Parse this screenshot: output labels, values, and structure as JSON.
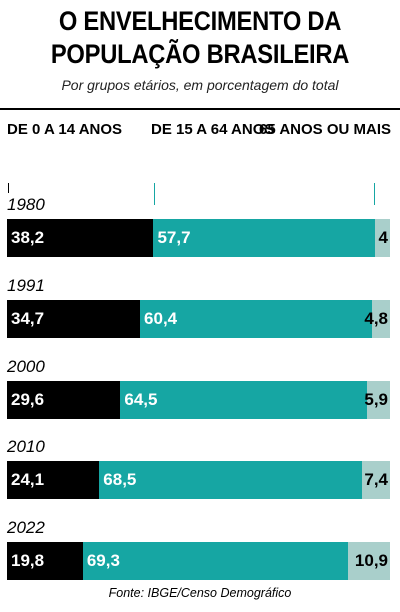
{
  "header": {
    "title_line1": "O ENVELHECIMENTO DA",
    "title_line2": "POPULAÇÃO BRASILEIRA",
    "subtitle": "Por grupos etários, em porcentagem do total"
  },
  "colors": {
    "age_0_14": "#000000",
    "age_15_64": "#16a6a3",
    "age_65_plus": "#a9cfcb",
    "label_light": "#ffffff",
    "label_dark": "#000000"
  },
  "chart_data": {
    "type": "bar",
    "orientation": "horizontal",
    "stacked": true,
    "unit": "%",
    "title": "O ENVELHECIMENTO DA POPULAÇÃO BRASILEIRA",
    "subtitle": "Por grupos etários, em porcentagem do total",
    "categories": [
      "1980",
      "1991",
      "2000",
      "2010",
      "2022"
    ],
    "series": [
      {
        "name": "DE 0 A 14 ANOS",
        "values": [
          38.2,
          34.7,
          29.6,
          24.1,
          19.8
        ],
        "labels": [
          "38,2",
          "34,7",
          "29,6",
          "24,1",
          "19,8"
        ]
      },
      {
        "name": "DE 15 A 64 ANOS",
        "values": [
          57.7,
          60.4,
          64.5,
          68.5,
          69.3
        ],
        "labels": [
          "57,7",
          "60,4",
          "64,5",
          "68,5",
          "69,3"
        ]
      },
      {
        "name": "65 ANOS OU MAIS",
        "values": [
          4,
          4.8,
          5.9,
          7.4,
          10.9
        ],
        "labels": [
          "4",
          "4,8",
          "5,9",
          "7,4",
          "10,9"
        ]
      }
    ],
    "legend_placement": "top",
    "grid": false,
    "source": "Fonte: IBGE/Censo Demográfico"
  }
}
